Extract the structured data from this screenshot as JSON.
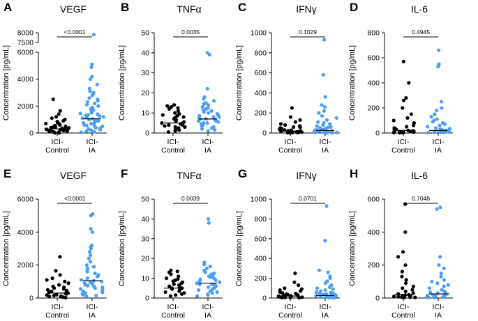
{
  "colors": {
    "control": "#000000",
    "ia": "#4a9ff5"
  },
  "chart_data": [
    {
      "type": "scatter",
      "panel": "A",
      "title": "VEGF",
      "ylabel": "Concentration [pg/mL]",
      "categories": [
        "ICI-\nControl",
        "ICI-\nIA"
      ],
      "ylim": [
        0,
        8000
      ],
      "yticks": [
        0,
        2000,
        4000,
        6000,
        7500,
        8000
      ],
      "axis_break": [
        6000,
        7500
      ],
      "pvalue": "<0.0001",
      "series": [
        {
          "name": "ICI-Control",
          "median": 300,
          "values": [
            2500,
            1650,
            1400,
            1200,
            1100,
            1000,
            900,
            850,
            800,
            750,
            700,
            650,
            600,
            550,
            500,
            450,
            420,
            400,
            380,
            350,
            330,
            300,
            280,
            250,
            230,
            200,
            180,
            150,
            130,
            100,
            80,
            60,
            40,
            20,
            10
          ]
        },
        {
          "name": "ICI-IA",
          "median": 1050,
          "values": [
            7900,
            5100,
            4900,
            4200,
            4000,
            3600,
            3300,
            3100,
            3000,
            2900,
            2800,
            2600,
            2500,
            2400,
            2300,
            2200,
            2100,
            2000,
            1900,
            1800,
            1700,
            1600,
            1500,
            1450,
            1400,
            1350,
            1300,
            1250,
            1200,
            1150,
            1100,
            1050,
            1000,
            950,
            900,
            850,
            800,
            750,
            700,
            650,
            600,
            550,
            500,
            450,
            400,
            350,
            300,
            250,
            200,
            150,
            100,
            50
          ]
        }
      ]
    },
    {
      "type": "scatter",
      "panel": "B",
      "title": "TNFα",
      "ylabel": "Concentration [pg/mL]",
      "categories": [
        "ICI-\nControl",
        "ICI-\nIA"
      ],
      "ylim": [
        0,
        50
      ],
      "yticks": [
        0,
        10,
        20,
        30,
        40,
        50
      ],
      "pvalue": "0.0035",
      "series": [
        {
          "name": "ICI-Control",
          "median": 5,
          "values": [
            14,
            13.5,
            13,
            12.5,
            12,
            11,
            10,
            9.5,
            9,
            8.5,
            8,
            7.5,
            7,
            6.5,
            6,
            5.5,
            5,
            5,
            4.5,
            4,
            4,
            3.5,
            3,
            3,
            2.5,
            2,
            1.5,
            1,
            0.5
          ]
        },
        {
          "name": "ICI-IA",
          "median": 7,
          "values": [
            40,
            39,
            22,
            18,
            17,
            16,
            15,
            14.5,
            14,
            13,
            12.5,
            12,
            11.5,
            11,
            10.5,
            10,
            9.5,
            9,
            8.5,
            8,
            8,
            7.5,
            7,
            7,
            6.5,
            6,
            6,
            5.5,
            5,
            5,
            4.5,
            4,
            3.5,
            3,
            2.5,
            2,
            1.5,
            1
          ]
        }
      ]
    },
    {
      "type": "scatter",
      "panel": "C",
      "title": "IFNγ",
      "ylabel": "Concentration [pg/mL]",
      "categories": [
        "ICI-\nControl",
        "ICI-\nIA"
      ],
      "ylim": [
        0,
        1000
      ],
      "yticks": [
        0,
        200,
        400,
        600,
        800,
        1000
      ],
      "pvalue": "0.1029",
      "series": [
        {
          "name": "ICI-Control",
          "median": 20,
          "values": [
            250,
            160,
            130,
            110,
            90,
            80,
            70,
            60,
            55,
            50,
            45,
            40,
            35,
            30,
            28,
            25,
            22,
            20,
            18,
            15,
            12,
            10,
            8,
            6,
            5,
            4,
            3,
            2
          ]
        },
        {
          "name": "ICI-IA",
          "median": 25,
          "values": [
            930,
            580,
            360,
            280,
            260,
            220,
            200,
            170,
            150,
            130,
            110,
            100,
            90,
            80,
            70,
            60,
            55,
            50,
            45,
            40,
            35,
            30,
            28,
            25,
            22,
            20,
            18,
            15,
            12,
            10,
            8,
            6,
            5,
            4,
            3,
            2
          ]
        }
      ]
    },
    {
      "type": "scatter",
      "panel": "D",
      "title": "IL-6",
      "ylabel": "Concentration [pg/mL]",
      "categories": [
        "ICI-\nControl",
        "ICI-\nIA"
      ],
      "ylim": [
        0,
        800
      ],
      "yticks": [
        0,
        200,
        400,
        600,
        800
      ],
      "pvalue": "0.4945",
      "series": [
        {
          "name": "ICI-Control",
          "median": 20,
          "values": [
            570,
            400,
            280,
            260,
            200,
            150,
            120,
            100,
            80,
            60,
            50,
            40,
            30,
            25,
            20,
            18,
            15,
            12,
            10,
            8,
            6,
            5,
            4,
            3,
            2
          ]
        },
        {
          "name": "ICI-IA",
          "median": 20,
          "values": [
            660,
            550,
            530,
            250,
            200,
            180,
            150,
            130,
            110,
            100,
            90,
            80,
            70,
            60,
            50,
            40,
            35,
            30,
            25,
            20,
            18,
            15,
            12,
            10,
            8,
            6,
            5,
            4,
            3,
            2
          ]
        }
      ]
    },
    {
      "type": "scatter",
      "panel": "E",
      "title": "VEGF",
      "ylabel": "Concentration [pg/mL]",
      "categories": [
        "ICI-\nControl",
        "ICI-\nIA"
      ],
      "ylim": [
        0,
        6000
      ],
      "yticks": [
        0,
        2000,
        4000,
        6000
      ],
      "pvalue": "<0.0001",
      "series": [
        {
          "name": "ICI-Control",
          "median": 300,
          "values": [
            2500,
            1650,
            1400,
            1200,
            1100,
            1000,
            900,
            800,
            700,
            650,
            600,
            550,
            500,
            450,
            400,
            350,
            300,
            280,
            250,
            200,
            180,
            150,
            120,
            100,
            80,
            50,
            20
          ]
        },
        {
          "name": "ICI-IA",
          "median": 1050,
          "values": [
            5100,
            5000,
            4200,
            4000,
            3200,
            3100,
            3000,
            2800,
            2600,
            2400,
            2200,
            2000,
            1900,
            1800,
            1700,
            1600,
            1500,
            1400,
            1300,
            1200,
            1100,
            1050,
            1000,
            950,
            900,
            850,
            800,
            750,
            700,
            650,
            600,
            550,
            500,
            450,
            400,
            350,
            300,
            250,
            200,
            150,
            100
          ]
        }
      ]
    },
    {
      "type": "scatter",
      "panel": "F",
      "title": "TNFα",
      "ylabel": "Concentration [pg/mL]",
      "categories": [
        "ICI-\nControl",
        "ICI-\nIA"
      ],
      "ylim": [
        0,
        50
      ],
      "yticks": [
        0,
        10,
        20,
        30,
        40,
        50
      ],
      "pvalue": "0.0039",
      "series": [
        {
          "name": "ICI-Control",
          "median": 5,
          "values": [
            14,
            13.5,
            13,
            12,
            11,
            10,
            9.5,
            9,
            8.5,
            8,
            7.5,
            7,
            6.5,
            6,
            5.5,
            5,
            5,
            4.5,
            4,
            3.5,
            3,
            2.5,
            2,
            1.5,
            1
          ]
        },
        {
          "name": "ICI-IA",
          "median": 7.5,
          "values": [
            40,
            38,
            18,
            17,
            16,
            15,
            14,
            13,
            12.5,
            12,
            11.5,
            11,
            10.5,
            10,
            9.5,
            9,
            8.5,
            8,
            7.5,
            7,
            7,
            6.5,
            6,
            5.5,
            5,
            4.5,
            4,
            3.5,
            3,
            2.5,
            2,
            1.5,
            1
          ]
        }
      ]
    },
    {
      "type": "scatter",
      "panel": "G",
      "title": "IFNγ",
      "ylabel": "Concentration [pg/mL]",
      "categories": [
        "ICI-\nControl",
        "ICI-\nIA"
      ],
      "ylim": [
        0,
        1000
      ],
      "yticks": [
        0,
        200,
        400,
        600,
        800,
        1000
      ],
      "pvalue": "0.0701",
      "series": [
        {
          "name": "ICI-Control",
          "median": 20,
          "values": [
            250,
            160,
            130,
            100,
            90,
            80,
            70,
            60,
            50,
            45,
            40,
            35,
            30,
            25,
            22,
            20,
            18,
            15,
            12,
            10,
            8,
            6,
            5,
            4,
            3
          ]
        },
        {
          "name": "ICI-IA",
          "median": 25,
          "values": [
            930,
            580,
            280,
            260,
            220,
            200,
            170,
            150,
            130,
            110,
            100,
            90,
            80,
            70,
            60,
            55,
            50,
            45,
            40,
            35,
            30,
            25,
            22,
            20,
            18,
            15,
            12,
            10,
            8,
            6,
            5,
            4,
            3
          ]
        }
      ]
    },
    {
      "type": "scatter",
      "panel": "H",
      "title": "IL-6",
      "ylabel": "Concentration [pg/mL]",
      "categories": [
        "ICI-\nControl",
        "ICI-\nIA"
      ],
      "ylim": [
        0,
        600
      ],
      "yticks": [
        0,
        200,
        400,
        600
      ],
      "pvalue": "0.7048",
      "series": [
        {
          "name": "ICI-Control",
          "median": 20,
          "values": [
            570,
            400,
            280,
            250,
            200,
            160,
            130,
            110,
            90,
            70,
            60,
            50,
            40,
            30,
            25,
            20,
            18,
            15,
            12,
            10,
            8,
            6,
            5,
            4,
            3
          ]
        },
        {
          "name": "ICI-IA",
          "median": 25,
          "values": [
            550,
            540,
            250,
            200,
            180,
            150,
            130,
            110,
            100,
            90,
            80,
            70,
            60,
            50,
            40,
            35,
            30,
            25,
            20,
            18,
            15,
            12,
            10,
            8,
            6,
            5,
            4,
            3
          ]
        }
      ]
    }
  ]
}
